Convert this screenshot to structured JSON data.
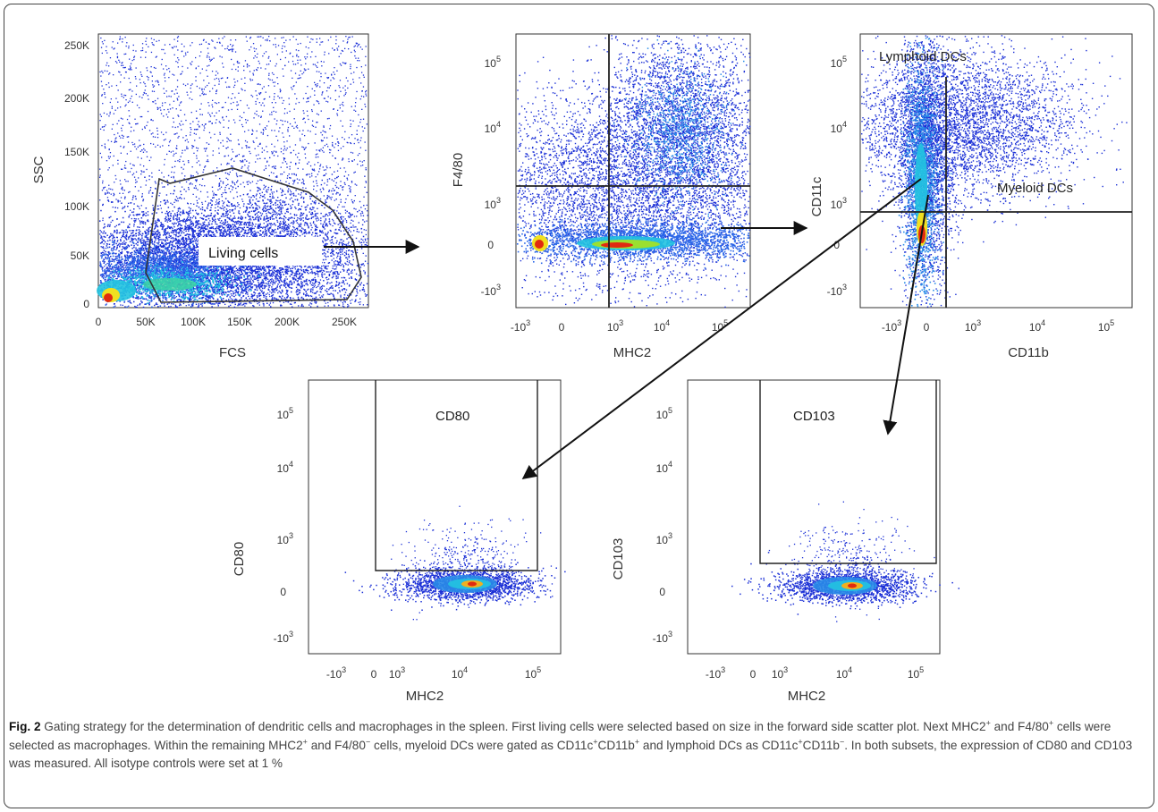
{
  "figure": {
    "panels": [
      {
        "id": "fsc-ssc",
        "xlabel": "FCS",
        "ylabel": "SSC",
        "xticks": [
          "0",
          "50K",
          "100K",
          "150K",
          "200K",
          "250K"
        ],
        "yticks": [
          "0",
          "50K",
          "100K",
          "150K",
          "200K",
          "250K"
        ],
        "gate_label": "Living cells"
      },
      {
        "id": "f480-mhc2",
        "xlabel": "MHC2",
        "ylabel": "F4/80"
      },
      {
        "id": "cd11c-cd11b",
        "xlabel": "CD11b",
        "ylabel": "CD11c",
        "labels": [
          "Lymphoid DCs",
          "Myeloid DCs"
        ]
      },
      {
        "id": "cd80-mhc2",
        "xlabel": "MHC2",
        "ylabel": "CD80",
        "gate_label": "CD80"
      },
      {
        "id": "cd103-mhc2",
        "xlabel": "MHC2",
        "ylabel": "CD103",
        "gate_label": "CD103"
      }
    ],
    "log_ticks_x": [
      "-10",
      "3",
      "0",
      "10",
      "3",
      "10",
      "4",
      "10",
      "5"
    ],
    "log_ticks_y": [
      "10",
      "5",
      "10",
      "4",
      "10",
      "3",
      "0",
      "-10",
      "3"
    ]
  },
  "caption": {
    "fig_label": "Fig. 2",
    "s1": " Gating strategy for the determination of dendritic cells and macrophages in the spleen. First living cells were selected based on size in the forward side scatter plot. Next MHC2",
    "sup_plus": "+",
    "sup_minus": "−",
    "s2": " and F4/80",
    "s3": " cells were selected as macrophages. Within the remaining MHC2",
    "s4": " and F4/80",
    "s5": " cells, myeloid DCs were gated as CD11c",
    "s6": "CD11b",
    "s7": " and lymphoid DCs as CD11c",
    "s8": "CD11b",
    "s9": ". In both subsets, the expression of CD80 and CD103 was measured. All isotype controls were set at 1 %"
  },
  "colors": {
    "density_low": "#1a2fd6",
    "density_mid": "#22c3e0",
    "density_high": "#e02a10",
    "gate": "#222222"
  }
}
